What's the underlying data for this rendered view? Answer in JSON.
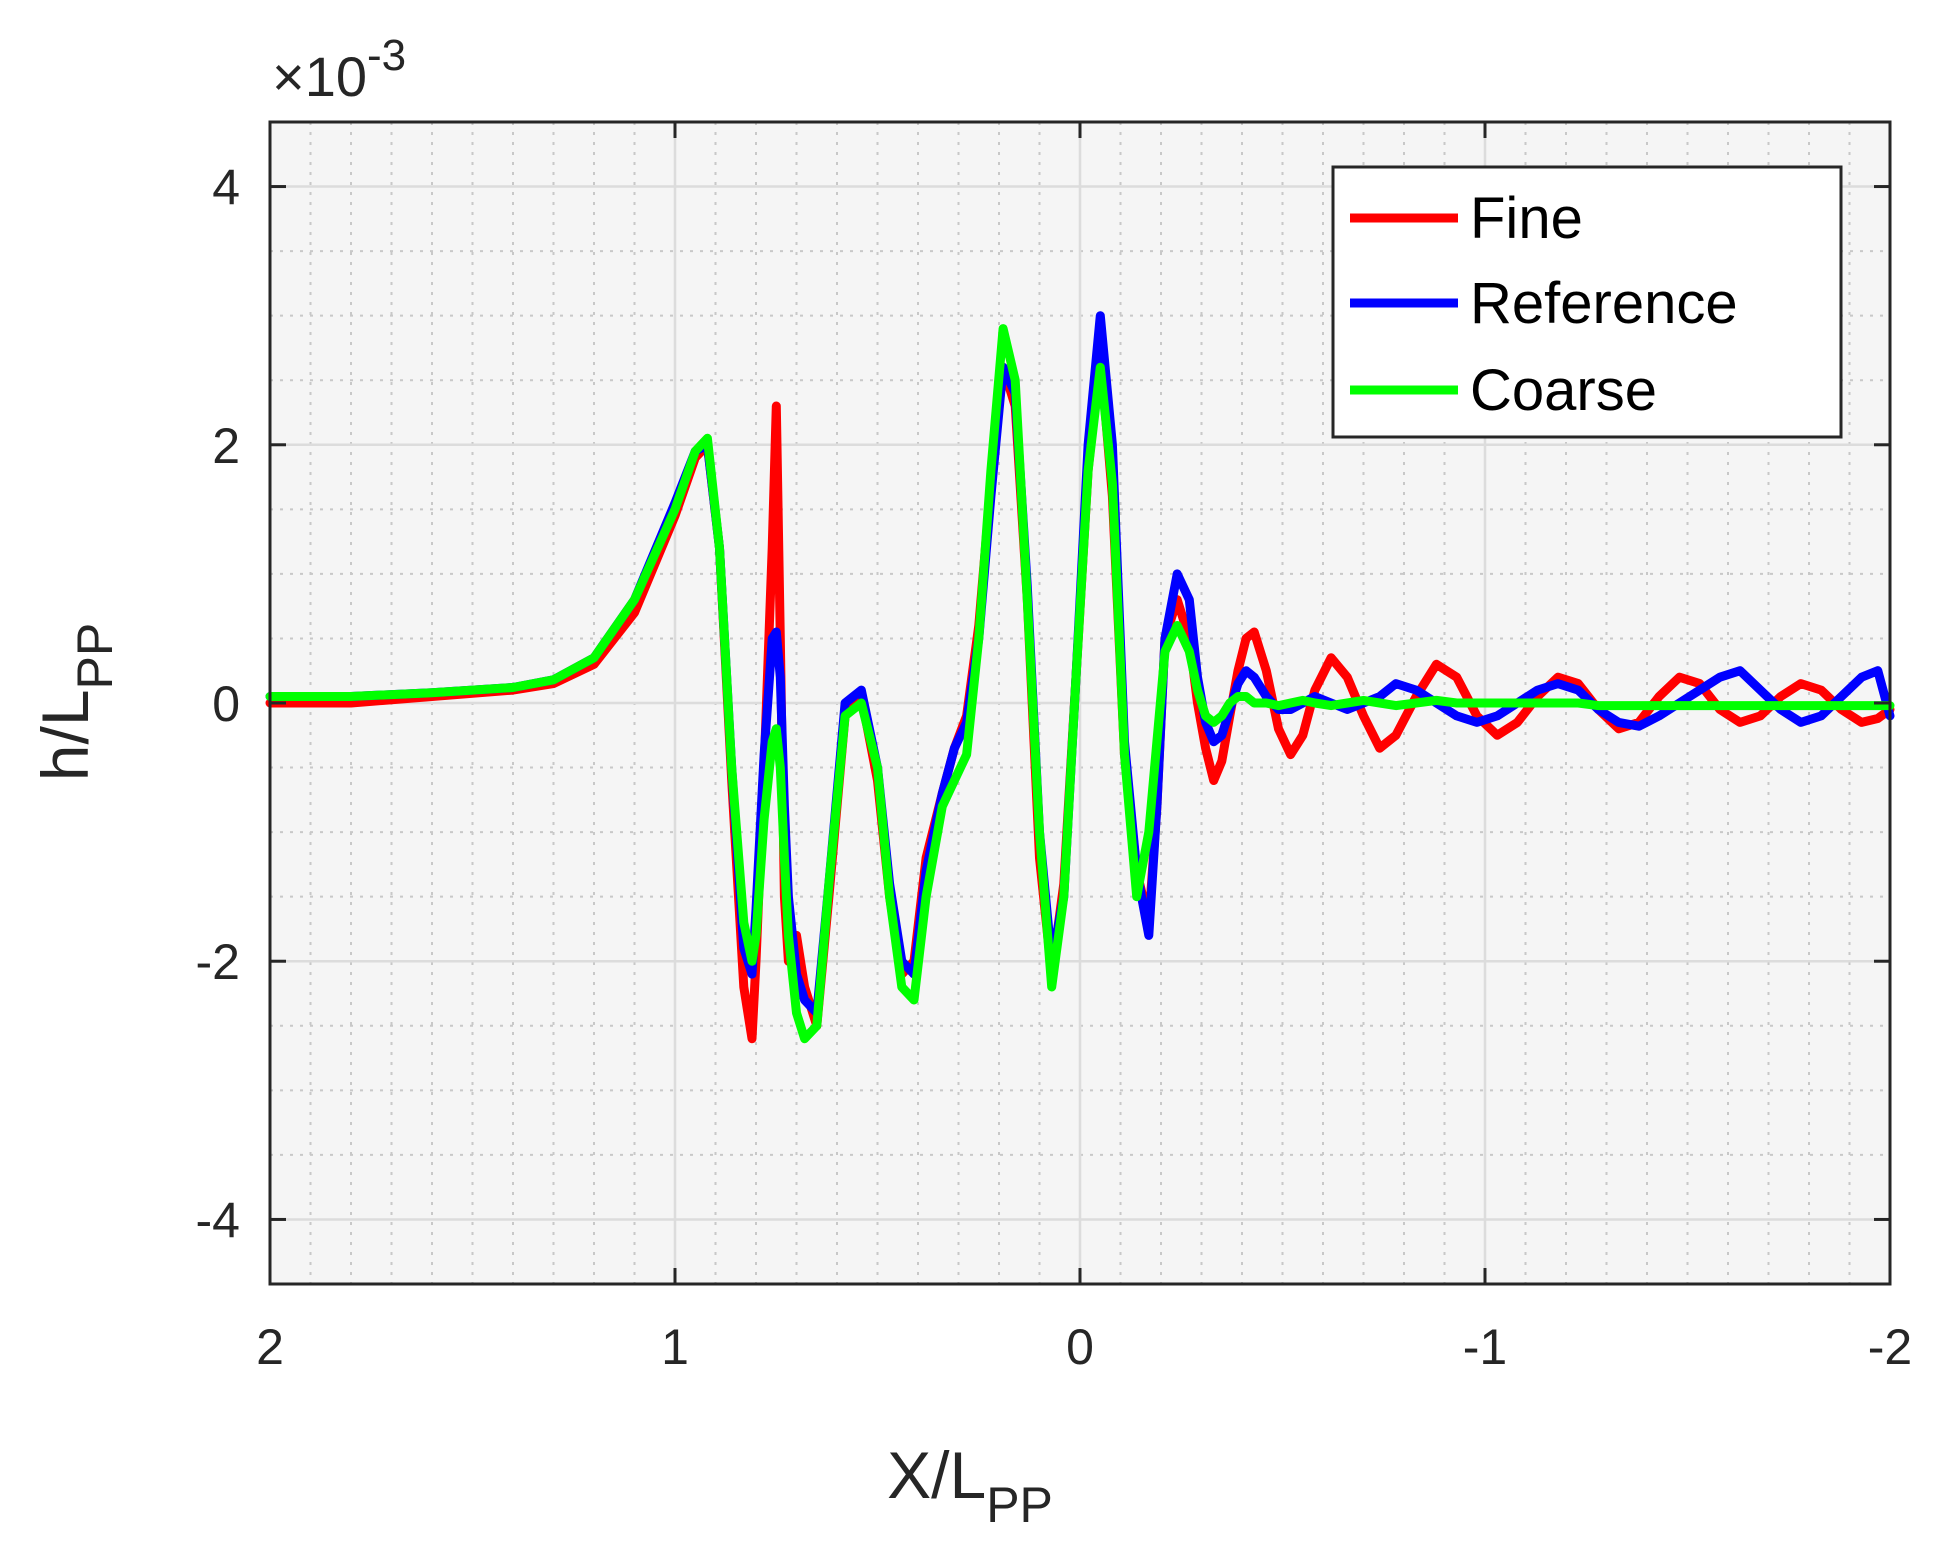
{
  "chart_data": {
    "type": "line",
    "title": "",
    "xlabel": {
      "main": "X/L",
      "sub": "PP"
    },
    "ylabel": {
      "main": "h/L",
      "sub": "PP"
    },
    "y_multiplier": {
      "prefix": "×10",
      "exponent": "-3"
    },
    "xlim": [
      2,
      -2
    ],
    "ylim": [
      -4.5,
      4.5
    ],
    "x_reversed": true,
    "grid": true,
    "minor_grid": true,
    "legend_position": "top-right",
    "x_ticks": [
      2,
      1,
      0,
      -1,
      -2
    ],
    "x_tick_labels": [
      "2",
      "1",
      "0",
      "-1",
      "-2"
    ],
    "y_ticks": [
      4,
      2,
      0,
      -2,
      -4
    ],
    "y_tick_labels": [
      "4",
      "2",
      "0",
      "-2",
      "-4"
    ],
    "series": [
      {
        "name": "Fine",
        "color": "#ff0000",
        "x": [
          2.0,
          1.8,
          1.6,
          1.4,
          1.3,
          1.2,
          1.1,
          1.0,
          0.95,
          0.92,
          0.89,
          0.86,
          0.83,
          0.81,
          0.8,
          0.78,
          0.76,
          0.75,
          0.74,
          0.73,
          0.72,
          0.7,
          0.68,
          0.65,
          0.62,
          0.58,
          0.54,
          0.5,
          0.47,
          0.44,
          0.41,
          0.38,
          0.34,
          0.31,
          0.28,
          0.25,
          0.22,
          0.19,
          0.16,
          0.13,
          0.1,
          0.07,
          0.04,
          0.01,
          -0.02,
          -0.05,
          -0.08,
          -0.11,
          -0.14,
          -0.17,
          -0.19,
          -0.21,
          -0.24,
          -0.27,
          -0.29,
          -0.31,
          -0.33,
          -0.35,
          -0.37,
          -0.39,
          -0.41,
          -0.43,
          -0.46,
          -0.49,
          -0.52,
          -0.55,
          -0.58,
          -0.62,
          -0.66,
          -0.7,
          -0.74,
          -0.78,
          -0.83,
          -0.88,
          -0.93,
          -0.98,
          -1.03,
          -1.08,
          -1.13,
          -1.18,
          -1.23,
          -1.28,
          -1.33,
          -1.38,
          -1.43,
          -1.48,
          -1.53,
          -1.58,
          -1.63,
          -1.68,
          -1.73,
          -1.78,
          -1.83,
          -1.88,
          -1.93,
          -1.97,
          -2.0
        ],
        "y": [
          0.0,
          0.0,
          0.05,
          0.1,
          0.15,
          0.3,
          0.7,
          1.45,
          1.9,
          2.0,
          1.2,
          -0.6,
          -2.2,
          -2.6,
          -2.0,
          -0.5,
          1.2,
          2.3,
          0.5,
          -1.5,
          -2.0,
          -1.8,
          -2.2,
          -2.5,
          -1.5,
          -0.1,
          0.05,
          -0.6,
          -1.5,
          -2.1,
          -2.0,
          -1.2,
          -0.7,
          -0.35,
          -0.1,
          0.6,
          1.7,
          2.6,
          2.3,
          0.8,
          -1.2,
          -2.1,
          -1.4,
          0.2,
          1.8,
          2.7,
          1.6,
          -0.4,
          -1.3,
          -1.7,
          -0.8,
          0.5,
          0.8,
          0.5,
          0.0,
          -0.35,
          -0.6,
          -0.45,
          -0.1,
          0.25,
          0.5,
          0.55,
          0.25,
          -0.2,
          -0.4,
          -0.25,
          0.1,
          0.35,
          0.2,
          -0.1,
          -0.35,
          -0.25,
          0.05,
          0.3,
          0.2,
          -0.1,
          -0.25,
          -0.15,
          0.05,
          0.2,
          0.15,
          -0.05,
          -0.2,
          -0.15,
          0.05,
          0.2,
          0.15,
          -0.05,
          -0.15,
          -0.1,
          0.05,
          0.15,
          0.1,
          -0.05,
          -0.15,
          -0.12,
          -0.05
        ]
      },
      {
        "name": "Reference",
        "color": "#0000ff",
        "x": [
          2.0,
          1.8,
          1.6,
          1.4,
          1.3,
          1.2,
          1.1,
          1.0,
          0.95,
          0.92,
          0.89,
          0.86,
          0.83,
          0.81,
          0.8,
          0.78,
          0.76,
          0.75,
          0.74,
          0.73,
          0.72,
          0.7,
          0.68,
          0.65,
          0.62,
          0.58,
          0.54,
          0.5,
          0.47,
          0.44,
          0.41,
          0.38,
          0.34,
          0.31,
          0.28,
          0.25,
          0.22,
          0.19,
          0.16,
          0.13,
          0.1,
          0.07,
          0.04,
          0.01,
          -0.02,
          -0.05,
          -0.08,
          -0.11,
          -0.14,
          -0.17,
          -0.19,
          -0.21,
          -0.24,
          -0.27,
          -0.29,
          -0.31,
          -0.33,
          -0.35,
          -0.37,
          -0.39,
          -0.41,
          -0.43,
          -0.46,
          -0.49,
          -0.52,
          -0.55,
          -0.58,
          -0.62,
          -0.66,
          -0.7,
          -0.74,
          -0.78,
          -0.83,
          -0.88,
          -0.93,
          -0.98,
          -1.03,
          -1.08,
          -1.13,
          -1.18,
          -1.23,
          -1.28,
          -1.33,
          -1.38,
          -1.43,
          -1.48,
          -1.53,
          -1.58,
          -1.63,
          -1.68,
          -1.73,
          -1.78,
          -1.83,
          -1.88,
          -1.93,
          -1.97,
          -2.0
        ],
        "y": [
          0.05,
          0.05,
          0.08,
          0.12,
          0.18,
          0.35,
          0.8,
          1.55,
          1.95,
          2.0,
          1.2,
          -0.5,
          -1.9,
          -2.1,
          -1.6,
          -0.4,
          0.5,
          0.55,
          0.2,
          -0.8,
          -1.5,
          -2.1,
          -2.3,
          -2.4,
          -1.4,
          0.0,
          0.1,
          -0.5,
          -1.4,
          -2.0,
          -2.1,
          -1.3,
          -0.7,
          -0.35,
          -0.15,
          0.5,
          1.6,
          2.6,
          2.4,
          0.9,
          -1.0,
          -2.0,
          -1.5,
          0.2,
          2.0,
          3.0,
          2.0,
          -0.3,
          -1.3,
          -1.8,
          -0.8,
          0.5,
          1.0,
          0.8,
          0.2,
          -0.15,
          -0.3,
          -0.25,
          -0.05,
          0.15,
          0.25,
          0.2,
          0.05,
          -0.05,
          -0.05,
          0.0,
          0.05,
          0.0,
          -0.05,
          0.0,
          0.05,
          0.15,
          0.1,
          0.0,
          -0.1,
          -0.15,
          -0.1,
          0.0,
          0.1,
          0.15,
          0.1,
          -0.05,
          -0.15,
          -0.18,
          -0.1,
          0.0,
          0.1,
          0.2,
          0.25,
          0.1,
          -0.05,
          -0.15,
          -0.1,
          0.05,
          0.2,
          0.25,
          -0.1
        ]
      },
      {
        "name": "Coarse",
        "color": "#00ff00",
        "x": [
          2.0,
          1.8,
          1.6,
          1.4,
          1.3,
          1.2,
          1.1,
          1.0,
          0.95,
          0.92,
          0.89,
          0.86,
          0.83,
          0.81,
          0.8,
          0.78,
          0.76,
          0.75,
          0.74,
          0.73,
          0.72,
          0.7,
          0.68,
          0.65,
          0.62,
          0.58,
          0.54,
          0.5,
          0.47,
          0.44,
          0.41,
          0.38,
          0.34,
          0.31,
          0.28,
          0.25,
          0.22,
          0.19,
          0.16,
          0.13,
          0.1,
          0.07,
          0.04,
          0.01,
          -0.02,
          -0.05,
          -0.08,
          -0.11,
          -0.14,
          -0.17,
          -0.19,
          -0.21,
          -0.24,
          -0.27,
          -0.29,
          -0.31,
          -0.33,
          -0.35,
          -0.37,
          -0.39,
          -0.41,
          -0.43,
          -0.46,
          -0.49,
          -0.52,
          -0.55,
          -0.58,
          -0.62,
          -0.66,
          -0.7,
          -0.74,
          -0.78,
          -0.83,
          -0.88,
          -0.93,
          -0.98,
          -1.03,
          -1.08,
          -1.13,
          -1.18,
          -1.23,
          -1.28,
          -1.33,
          -1.38,
          -1.43,
          -1.48,
          -1.53,
          -1.58,
          -1.63,
          -1.68,
          -1.73,
          -1.78,
          -1.83,
          -1.88,
          -1.93,
          -1.97,
          -2.0
        ],
        "y": [
          0.05,
          0.05,
          0.08,
          0.12,
          0.18,
          0.35,
          0.8,
          1.5,
          1.95,
          2.05,
          1.2,
          -0.5,
          -1.7,
          -2.0,
          -1.8,
          -0.9,
          -0.3,
          -0.2,
          -0.5,
          -1.2,
          -1.8,
          -2.4,
          -2.6,
          -2.5,
          -1.4,
          -0.1,
          0.0,
          -0.5,
          -1.5,
          -2.2,
          -2.3,
          -1.5,
          -0.8,
          -0.6,
          -0.4,
          0.5,
          1.8,
          2.9,
          2.5,
          0.8,
          -1.0,
          -2.2,
          -1.5,
          0.2,
          1.8,
          2.6,
          1.7,
          -0.4,
          -1.5,
          -1.0,
          -0.3,
          0.4,
          0.6,
          0.4,
          0.1,
          -0.1,
          -0.15,
          -0.1,
          0.0,
          0.05,
          0.05,
          0.0,
          0.0,
          -0.02,
          0.0,
          0.02,
          0.0,
          -0.02,
          0.0,
          0.02,
          0.0,
          -0.02,
          0.0,
          0.02,
          0.0,
          0.0,
          0.0,
          0.0,
          0.0,
          0.0,
          0.0,
          -0.02,
          -0.02,
          -0.02,
          -0.02,
          -0.02,
          -0.02,
          -0.02,
          -0.02,
          -0.02,
          -0.02,
          -0.02,
          -0.02,
          -0.02,
          -0.02,
          -0.02,
          -0.02
        ]
      }
    ]
  }
}
